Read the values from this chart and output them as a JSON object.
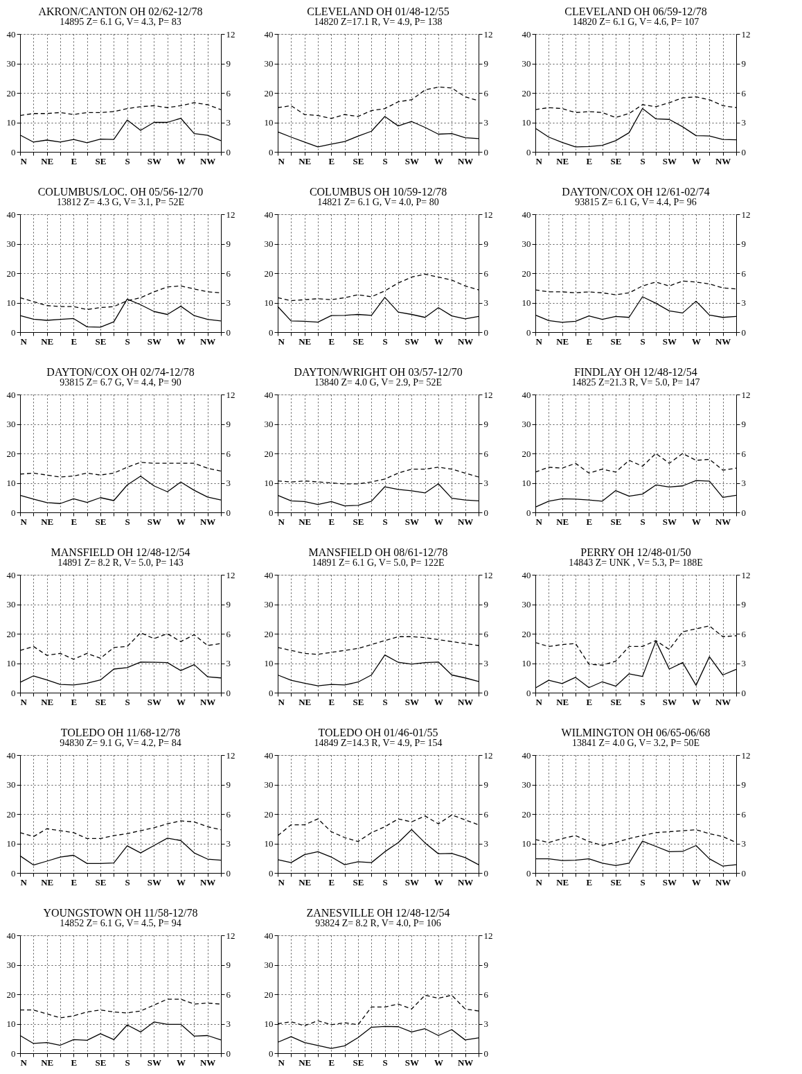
{
  "chart_data": [
    {
      "type": "line",
      "title": "AKRON/CANTON  OH 02/62-12/78",
      "subtitle": "14895  Z= 6.1 G, V= 4.3, P=  83",
      "categories": [
        "N",
        null,
        "NE",
        null,
        "E",
        null,
        "SE",
        null,
        "S",
        null,
        "SW",
        null,
        "W",
        null,
        "NW",
        null
      ],
      "ylim": [
        0,
        40
      ],
      "yticks": [
        0,
        10,
        20,
        30,
        40
      ],
      "y2lim": [
        0,
        12
      ],
      "y2ticks": [
        0,
        3,
        6,
        9,
        12
      ],
      "grid": true,
      "series": [
        {
          "color": "#000000",
          "line_style": "solid",
          "values": [
            5.7,
            3.3,
            4,
            3.3,
            4.2,
            3.1,
            4.3,
            4.2,
            10.8,
            7.3,
            10,
            10,
            11.4,
            6.2,
            5.6,
            3.8
          ]
        },
        {
          "color": "#000000",
          "line_style": "dashed",
          "axis": "y2",
          "values": [
            3.7,
            3.9,
            3.9,
            4.0,
            3.8,
            4.0,
            4.0,
            4.1,
            4.4,
            4.6,
            4.7,
            4.5,
            4.7,
            5.0,
            4.8,
            4.3
          ]
        }
      ]
    },
    {
      "type": "line",
      "title": "CLEVELAND  OH 01/48-12/55",
      "subtitle": "14820  Z=17.1 R, V= 4.9, P= 138",
      "categories": [
        "N",
        null,
        "NE",
        null,
        "E",
        null,
        "SE",
        null,
        "S",
        null,
        "SW",
        null,
        "W",
        null,
        "NW",
        null
      ],
      "ylim": [
        0,
        40
      ],
      "yticks": [
        0,
        10,
        20,
        30,
        40
      ],
      "y2lim": [
        0,
        12
      ],
      "y2ticks": [
        0,
        3,
        6,
        9,
        12
      ],
      "grid": true,
      "series": [
        {
          "color": "#000000",
          "line_style": "solid",
          "values": [
            6.8,
            5,
            3.3,
            1.7,
            2.6,
            3.5,
            5.3,
            7,
            12,
            8.8,
            10.3,
            8.3,
            6,
            6.2,
            4.8,
            4.5
          ]
        },
        {
          "color": "#000000",
          "line_style": "dashed",
          "axis": "y2",
          "values": [
            4.5,
            4.7,
            3.8,
            3.7,
            3.4,
            3.8,
            3.6,
            4.2,
            4.4,
            5.1,
            5.3,
            6.3,
            6.6,
            6.5,
            5.6,
            5.2
          ]
        }
      ]
    },
    {
      "type": "line",
      "title": "CLEVELAND  OH 06/59-12/78",
      "subtitle": "14820  Z= 6.1 G, V= 4.6, P= 107",
      "categories": [
        "N",
        null,
        "NE",
        null,
        "E",
        null,
        "SE",
        null,
        "S",
        null,
        "SW",
        null,
        "W",
        null,
        "NW",
        null
      ],
      "ylim": [
        0,
        40
      ],
      "yticks": [
        0,
        10,
        20,
        30,
        40
      ],
      "y2lim": [
        0,
        12
      ],
      "y2ticks": [
        0,
        3,
        6,
        9,
        12
      ],
      "grid": true,
      "series": [
        {
          "color": "#000000",
          "line_style": "solid",
          "values": [
            8,
            5,
            3.2,
            1.7,
            1.8,
            2.2,
            3.8,
            6.5,
            14.7,
            11.2,
            11,
            8.5,
            5.5,
            5.4,
            4.2,
            4.1
          ]
        },
        {
          "color": "#000000",
          "line_style": "dashed",
          "axis": "y2",
          "values": [
            4.3,
            4.5,
            4.4,
            4.0,
            4.1,
            4.0,
            3.5,
            3.9,
            4.8,
            4.6,
            5.0,
            5.5,
            5.6,
            5.3,
            4.7,
            4.5
          ]
        }
      ]
    },
    {
      "type": "line",
      "title": "COLUMBUS/LOC. OH 05/56-12/70",
      "subtitle": "13812  Z= 4.3 G, V= 3.1, P=  52E",
      "categories": [
        "N",
        null,
        "NE",
        null,
        "E",
        null,
        "SE",
        null,
        "S",
        null,
        "SW",
        null,
        "W",
        null,
        "NW",
        null
      ],
      "ylim": [
        0,
        40
      ],
      "yticks": [
        0,
        10,
        20,
        30,
        40
      ],
      "y2lim": [
        0,
        12
      ],
      "y2ticks": [
        0,
        3,
        6,
        9,
        12
      ],
      "grid": true,
      "series": [
        {
          "color": "#000000",
          "line_style": "solid",
          "values": [
            5.6,
            4.4,
            4,
            4.3,
            4.6,
            1.8,
            1.7,
            3.5,
            11.2,
            9.3,
            7,
            6,
            8.8,
            5.6,
            4.3,
            3.8
          ]
        },
        {
          "color": "#000000",
          "line_style": "dashed",
          "axis": "y2",
          "values": [
            3.5,
            3.1,
            2.7,
            2.6,
            2.6,
            2.3,
            2.5,
            2.6,
            3.2,
            3.5,
            4.1,
            4.6,
            4.7,
            4.4,
            4.1,
            4.0
          ]
        }
      ]
    },
    {
      "type": "line",
      "title": "COLUMBUS  OH 10/59-12/78",
      "subtitle": "14821  Z= 6.1 G, V= 4.0, P=  80",
      "categories": [
        "N",
        null,
        "NE",
        null,
        "E",
        null,
        "SE",
        null,
        "S",
        null,
        "SW",
        null,
        "W",
        null,
        "NW",
        null
      ],
      "ylim": [
        0,
        40
      ],
      "yticks": [
        0,
        10,
        20,
        30,
        40
      ],
      "y2lim": [
        0,
        12
      ],
      "y2ticks": [
        0,
        3,
        6,
        9,
        12
      ],
      "grid": true,
      "series": [
        {
          "color": "#000000",
          "line_style": "solid",
          "values": [
            8.7,
            3.8,
            3.7,
            3.4,
            5.6,
            5.7,
            6,
            5.7,
            11.8,
            6.8,
            6,
            5,
            8.3,
            5.5,
            4.5,
            5.3
          ]
        },
        {
          "color": "#000000",
          "line_style": "dashed",
          "axis": "y2",
          "values": [
            3.5,
            3.2,
            3.3,
            3.4,
            3.3,
            3.5,
            3.8,
            3.6,
            4.2,
            5.0,
            5.6,
            5.9,
            5.6,
            5.3,
            4.7,
            4.3
          ]
        }
      ]
    },
    {
      "type": "line",
      "title": "DAYTON/COX  OH 12/61-02/74",
      "subtitle": "93815  Z= 6.1 G, V= 4.4, P=  96",
      "categories": [
        "N",
        null,
        "NE",
        null,
        "E",
        null,
        "SE",
        null,
        "S",
        null,
        "SW",
        null,
        "W",
        null,
        "NW",
        null
      ],
      "ylim": [
        0,
        40
      ],
      "yticks": [
        0,
        10,
        20,
        30,
        40
      ],
      "y2lim": [
        0,
        12
      ],
      "y2ticks": [
        0,
        3,
        6,
        9,
        12
      ],
      "grid": true,
      "series": [
        {
          "color": "#000000",
          "line_style": "solid",
          "values": [
            5.8,
            3.9,
            3.3,
            3.7,
            5.5,
            4.3,
            5.3,
            5,
            12,
            9.8,
            7.2,
            6.5,
            10.5,
            5.8,
            5,
            5.3
          ]
        },
        {
          "color": "#000000",
          "line_style": "dashed",
          "axis": "y2",
          "values": [
            4.3,
            4.1,
            4.1,
            4.0,
            4.1,
            4.0,
            3.8,
            4.0,
            4.7,
            5.1,
            4.7,
            5.2,
            5.1,
            4.9,
            4.5,
            4.4
          ]
        }
      ]
    },
    {
      "type": "line",
      "title": "DAYTON/COX  OH 02/74-12/78",
      "subtitle": "93815  Z= 6.7 G, V= 4.4, P=  90",
      "categories": [
        "N",
        null,
        "NE",
        null,
        "E",
        null,
        "SE",
        null,
        "S",
        null,
        "SW",
        null,
        "W",
        null,
        "NW",
        null
      ],
      "ylim": [
        0,
        40
      ],
      "yticks": [
        0,
        10,
        20,
        30,
        40
      ],
      "y2lim": [
        0,
        12
      ],
      "y2ticks": [
        0,
        3,
        6,
        9,
        12
      ],
      "grid": true,
      "series": [
        {
          "color": "#000000",
          "line_style": "solid",
          "values": [
            5.8,
            4.5,
            3.3,
            3,
            4.6,
            3.4,
            5,
            4,
            9.3,
            12.3,
            9,
            7,
            10.3,
            7.5,
            5.2,
            4.2
          ]
        },
        {
          "color": "#000000",
          "line_style": "dashed",
          "axis": "y2",
          "values": [
            3.9,
            4.0,
            3.8,
            3.6,
            3.7,
            4.0,
            3.8,
            4.0,
            4.6,
            5.1,
            5.0,
            5.0,
            5.0,
            5.0,
            4.5,
            4.2
          ]
        }
      ]
    },
    {
      "type": "line",
      "title": "DAYTON/WRIGHT OH 03/57-12/70",
      "subtitle": "13840  Z= 4.0 G, V= 2.9, P=  52E",
      "categories": [
        "N",
        null,
        "NE",
        null,
        "E",
        null,
        "SE",
        null,
        "S",
        null,
        "SW",
        null,
        "W",
        null,
        "NW",
        null
      ],
      "ylim": [
        0,
        40
      ],
      "yticks": [
        0,
        10,
        20,
        30,
        40
      ],
      "y2lim": [
        0,
        12
      ],
      "y2ticks": [
        0,
        3,
        6,
        9,
        12
      ],
      "grid": true,
      "series": [
        {
          "color": "#000000",
          "line_style": "solid",
          "values": [
            5.8,
            3.9,
            3.7,
            2.7,
            3.7,
            2.2,
            2.4,
            3.8,
            8.7,
            7.8,
            7.3,
            6.6,
            9.7,
            4.8,
            4.2,
            3.9
          ]
        },
        {
          "color": "#000000",
          "line_style": "dashed",
          "axis": "y2",
          "values": [
            3.2,
            3.1,
            3.2,
            3.1,
            3.0,
            2.9,
            2.9,
            3.1,
            3.4,
            4.0,
            4.4,
            4.4,
            4.6,
            4.4,
            4.0,
            3.6
          ]
        }
      ]
    },
    {
      "type": "line",
      "title": "FINDLAY  OH 12/48-12/54",
      "subtitle": "14825  Z=21.3 R, V= 5.0, P= 147",
      "categories": [
        "N",
        null,
        "NE",
        null,
        "E",
        null,
        "SE",
        null,
        "S",
        null,
        "SW",
        null,
        "W",
        null,
        "NW",
        null
      ],
      "ylim": [
        0,
        40
      ],
      "yticks": [
        0,
        10,
        20,
        30,
        40
      ],
      "y2lim": [
        0,
        12
      ],
      "y2ticks": [
        0,
        3,
        6,
        9,
        12
      ],
      "grid": true,
      "series": [
        {
          "color": "#000000",
          "line_style": "solid",
          "values": [
            1.8,
            3.8,
            4.6,
            4.5,
            4.2,
            3.8,
            7.4,
            5.5,
            6.2,
            9.3,
            8.6,
            9,
            10.8,
            10.6,
            5.1,
            5.8
          ]
        },
        {
          "color": "#000000",
          "line_style": "dashed",
          "axis": "y2",
          "values": [
            4.1,
            4.6,
            4.5,
            5.0,
            4.0,
            4.4,
            4.1,
            5.3,
            4.7,
            6.0,
            5.0,
            6.0,
            5.3,
            5.4,
            4.3,
            4.5
          ]
        }
      ]
    },
    {
      "type": "line",
      "title": "MANSFIELD  OH 12/48-12/54",
      "subtitle": "14891  Z= 8.2 R, V= 5.0, P= 143",
      "categories": [
        "N",
        null,
        "NE",
        null,
        "E",
        null,
        "SE",
        null,
        "S",
        null,
        "SW",
        null,
        "W",
        null,
        "NW",
        null
      ],
      "ylim": [
        0,
        40
      ],
      "yticks": [
        0,
        10,
        20,
        30,
        40
      ],
      "y2lim": [
        0,
        12
      ],
      "y2ticks": [
        0,
        3,
        6,
        9,
        12
      ],
      "grid": true,
      "series": [
        {
          "color": "#000000",
          "line_style": "solid",
          "values": [
            3.5,
            5.7,
            4.3,
            2.8,
            2.6,
            3.2,
            4.3,
            8,
            8.5,
            10.4,
            10.3,
            10.2,
            7.5,
            9.5,
            5.4,
            5
          ]
        },
        {
          "color": "#000000",
          "line_style": "dashed",
          "axis": "y2",
          "values": [
            4.3,
            4.7,
            3.8,
            4.0,
            3.4,
            4.0,
            3.5,
            4.6,
            4.7,
            6.1,
            5.5,
            6.0,
            5.2,
            5.9,
            4.8,
            5.0
          ]
        }
      ]
    },
    {
      "type": "line",
      "title": "MANSFIELD  OH 08/61-12/78",
      "subtitle": "14891  Z= 6.1 G, V= 5.0, P= 122E",
      "categories": [
        "N",
        null,
        "NE",
        null,
        "E",
        null,
        "SE",
        null,
        "S",
        null,
        "SW",
        null,
        "W",
        null,
        "NW",
        null
      ],
      "ylim": [
        0,
        40
      ],
      "yticks": [
        0,
        10,
        20,
        30,
        40
      ],
      "y2lim": [
        0,
        12
      ],
      "y2ticks": [
        0,
        3,
        6,
        9,
        12
      ],
      "grid": true,
      "series": [
        {
          "color": "#000000",
          "line_style": "solid",
          "values": [
            6,
            4.2,
            3.2,
            2.3,
            2.8,
            2.6,
            3.6,
            6,
            12.8,
            10.3,
            9.7,
            10.2,
            10.4,
            6,
            5,
            3.8
          ]
        },
        {
          "color": "#000000",
          "line_style": "dashed",
          "axis": "y2",
          "values": [
            4.6,
            4.3,
            4.0,
            3.9,
            4.1,
            4.3,
            4.5,
            4.9,
            5.3,
            5.7,
            5.7,
            5.6,
            5.4,
            5.2,
            5.0,
            4.8
          ]
        }
      ]
    },
    {
      "type": "line",
      "title": "PERRY  OH 12/48-01/50",
      "subtitle": "14843  Z= UNK  , V= 5.3, P= 188E",
      "categories": [
        "N",
        null,
        "NE",
        null,
        "E",
        null,
        "SE",
        null,
        "S",
        null,
        "SW",
        null,
        "W",
        null,
        "NW",
        null
      ],
      "ylim": [
        0,
        40
      ],
      "yticks": [
        0,
        10,
        20,
        30,
        40
      ],
      "y2lim": [
        0,
        12
      ],
      "y2ticks": [
        0,
        3,
        6,
        9,
        12
      ],
      "grid": true,
      "series": [
        {
          "color": "#000000",
          "line_style": "solid",
          "values": [
            1.6,
            4.2,
            3.1,
            5.2,
            1.7,
            3.7,
            2.2,
            6.4,
            5.5,
            17.5,
            8,
            10.2,
            2.5,
            12.2,
            6,
            7.9
          ]
        },
        {
          "color": "#000000",
          "line_style": "dashed",
          "axis": "y2",
          "values": [
            5.1,
            4.7,
            4.9,
            5.0,
            2.9,
            2.8,
            3.2,
            4.7,
            4.7,
            5.3,
            4.4,
            6.2,
            6.5,
            6.8,
            5.7,
            5.8
          ]
        }
      ]
    },
    {
      "type": "line",
      "title": "TOLEDO  OH 11/68-12/78",
      "subtitle": "94830  Z= 9.1 G, V= 4.2, P=  84",
      "categories": [
        "N",
        null,
        "NE",
        null,
        "E",
        null,
        "SE",
        null,
        "S",
        null,
        "SW",
        null,
        "W",
        null,
        "NW",
        null
      ],
      "ylim": [
        0,
        40
      ],
      "yticks": [
        0,
        10,
        20,
        30,
        40
      ],
      "y2lim": [
        0,
        12
      ],
      "y2ticks": [
        0,
        3,
        6,
        9,
        12
      ],
      "grid": true,
      "series": [
        {
          "color": "#000000",
          "line_style": "solid",
          "values": [
            5.8,
            2.7,
            4,
            5.4,
            6,
            3.2,
            3.2,
            3.4,
            9.2,
            6.8,
            9.3,
            11.8,
            11,
            6.8,
            4.7,
            4.3
          ]
        },
        {
          "color": "#000000",
          "line_style": "dashed",
          "axis": "y2",
          "values": [
            4.1,
            3.7,
            4.5,
            4.3,
            4.1,
            3.5,
            3.5,
            3.8,
            4.0,
            4.3,
            4.6,
            5.0,
            5.3,
            5.2,
            4.7,
            4.4
          ]
        }
      ]
    },
    {
      "type": "line",
      "title": "TOLEDO  OH 01/46-01/55",
      "subtitle": "14849  Z=14.3 R, V= 4.9, P= 154",
      "categories": [
        "N",
        null,
        "NE",
        null,
        "E",
        null,
        "SE",
        null,
        "S",
        null,
        "SW",
        null,
        "W",
        null,
        "NW",
        null
      ],
      "ylim": [
        0,
        40
      ],
      "yticks": [
        0,
        10,
        20,
        30,
        40
      ],
      "y2lim": [
        0,
        12
      ],
      "y2ticks": [
        0,
        3,
        6,
        9,
        12
      ],
      "grid": true,
      "series": [
        {
          "color": "#000000",
          "line_style": "solid",
          "values": [
            4.5,
            3.5,
            6.2,
            7.2,
            5.4,
            2.8,
            3.8,
            3.5,
            7.2,
            10.3,
            14.7,
            10.2,
            6.5,
            6.6,
            5.2,
            2.8
          ]
        },
        {
          "color": "#000000",
          "line_style": "dashed",
          "axis": "y2",
          "values": [
            3.8,
            4.9,
            4.9,
            5.5,
            4.2,
            3.6,
            3.2,
            4.1,
            4.7,
            5.5,
            5.2,
            5.8,
            5.0,
            5.9,
            5.4,
            4.9
          ]
        }
      ]
    },
    {
      "type": "line",
      "title": "WILMINGTON  OH 06/65-06/68",
      "subtitle": "13841  Z= 4.0 G, V= 3.2, P=  50E",
      "categories": [
        "N",
        null,
        "NE",
        null,
        "E",
        null,
        "SE",
        null,
        "S",
        null,
        "SW",
        null,
        "W",
        null,
        "NW",
        null
      ],
      "ylim": [
        0,
        40
      ],
      "yticks": [
        0,
        10,
        20,
        30,
        40
      ],
      "y2lim": [
        0,
        12
      ],
      "y2ticks": [
        0,
        3,
        6,
        9,
        12
      ],
      "grid": true,
      "series": [
        {
          "color": "#000000",
          "line_style": "solid",
          "values": [
            4.8,
            4.8,
            4.2,
            4.3,
            4.8,
            3.3,
            2.5,
            3.3,
            10.8,
            9,
            7.2,
            7.3,
            9.3,
            4.8,
            2.3,
            2.8
          ]
        },
        {
          "color": "#000000",
          "line_style": "dashed",
          "axis": "y2",
          "values": [
            3.4,
            3.1,
            3.5,
            3.8,
            3.2,
            2.8,
            3.1,
            3.5,
            3.8,
            4.1,
            4.2,
            4.3,
            4.4,
            4.0,
            3.7,
            3.1
          ]
        }
      ]
    },
    {
      "type": "line",
      "title": "YOUNGSTOWN  OH 11/58-12/78",
      "subtitle": "14852  Z= 6.1 G, V= 4.5, P=  94",
      "categories": [
        "N",
        null,
        "NE",
        null,
        "E",
        null,
        "SE",
        null,
        "S",
        null,
        "SW",
        null,
        "W",
        null,
        "NW",
        null
      ],
      "ylim": [
        0,
        40
      ],
      "yticks": [
        0,
        10,
        20,
        30,
        40
      ],
      "y2lim": [
        0,
        12
      ],
      "y2ticks": [
        0,
        3,
        6,
        9,
        12
      ],
      "grid": true,
      "series": [
        {
          "color": "#000000",
          "line_style": "solid",
          "values": [
            6,
            3.3,
            3.6,
            2.7,
            4.6,
            4.4,
            6.6,
            4.6,
            9.6,
            7.2,
            10.6,
            9.8,
            9.8,
            5.8,
            6,
            4.5
          ]
        },
        {
          "color": "#000000",
          "line_style": "dashed",
          "axis": "y2",
          "values": [
            4.4,
            4.4,
            4.0,
            3.6,
            3.8,
            4.2,
            4.4,
            4.2,
            4.1,
            4.3,
            4.9,
            5.5,
            5.5,
            5.0,
            5.1,
            5.0
          ]
        }
      ]
    },
    {
      "type": "line",
      "title": "ZANESVILLE  OH 12/48-12/54",
      "subtitle": "93824  Z= 8.2 R, V= 4.0, P= 106",
      "categories": [
        "N",
        null,
        "NE",
        null,
        "E",
        null,
        "SE",
        null,
        "S",
        null,
        "SW",
        null,
        "W",
        null,
        "NW",
        null
      ],
      "ylim": [
        0,
        40
      ],
      "yticks": [
        0,
        10,
        20,
        30,
        40
      ],
      "y2lim": [
        0,
        12
      ],
      "y2ticks": [
        0,
        3,
        6,
        9,
        12
      ],
      "grid": true,
      "series": [
        {
          "color": "#000000",
          "line_style": "solid",
          "values": [
            3.7,
            5.6,
            3.6,
            2.6,
            1.6,
            2.5,
            5.3,
            8.8,
            9.1,
            9,
            7.2,
            8.3,
            6,
            8,
            4.5,
            5.2
          ]
        },
        {
          "color": "#000000",
          "line_style": "dashed",
          "axis": "y2",
          "values": [
            3.0,
            3.2,
            2.8,
            3.3,
            2.9,
            3.1,
            2.9,
            4.7,
            4.7,
            5.0,
            4.5,
            5.9,
            5.6,
            5.9,
            4.5,
            4.3
          ]
        }
      ]
    }
  ]
}
